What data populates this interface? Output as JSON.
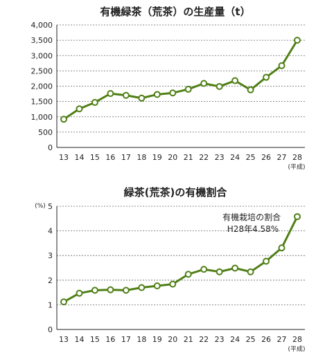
{
  "chart_data": [
    {
      "type": "line",
      "title": "有機緑茶（荒茶）の生産量（t）",
      "categories": [
        "13",
        "14",
        "15",
        "16",
        "17",
        "18",
        "19",
        "20",
        "21",
        "22",
        "23",
        "24",
        "25",
        "26",
        "27",
        "28"
      ],
      "x_unit": "(平成)",
      "y_unit": "",
      "ylim": [
        0,
        4000
      ],
      "yticks": [
        0,
        500,
        1000,
        1500,
        2000,
        2500,
        3000,
        3500,
        4000
      ],
      "ytick_labels": [
        "0",
        "500",
        "1,000",
        "1,500",
        "2,000",
        "2,500",
        "3,000",
        "3,500",
        "4,000"
      ],
      "grid": true,
      "color": "#4f7f15",
      "series": [
        {
          "values": [
            920,
            1260,
            1470,
            1760,
            1700,
            1610,
            1730,
            1780,
            1900,
            2090,
            1990,
            2180,
            1880,
            2290,
            2670,
            3500
          ]
        }
      ],
      "annotation": ""
    },
    {
      "type": "line",
      "title": "緑茶(荒茶)の有機割合",
      "categories": [
        "13",
        "14",
        "15",
        "16",
        "17",
        "18",
        "19",
        "20",
        "21",
        "22",
        "23",
        "24",
        "25",
        "26",
        "27",
        "28"
      ],
      "x_unit": "(平成)",
      "y_unit": "(%)",
      "ylim": [
        0,
        5
      ],
      "yticks": [
        0,
        1,
        2,
        3,
        4,
        5
      ],
      "ytick_labels": [
        "0",
        "1",
        "2",
        "3",
        "4",
        "5"
      ],
      "grid": true,
      "color": "#4f7f15",
      "series": [
        {
          "values": [
            1.12,
            1.47,
            1.59,
            1.61,
            1.59,
            1.7,
            1.77,
            1.84,
            2.24,
            2.44,
            2.34,
            2.49,
            2.34,
            2.77,
            3.31,
            4.58
          ]
        }
      ],
      "annotation": "有機栽培の割合\nH28年4.58%"
    }
  ]
}
